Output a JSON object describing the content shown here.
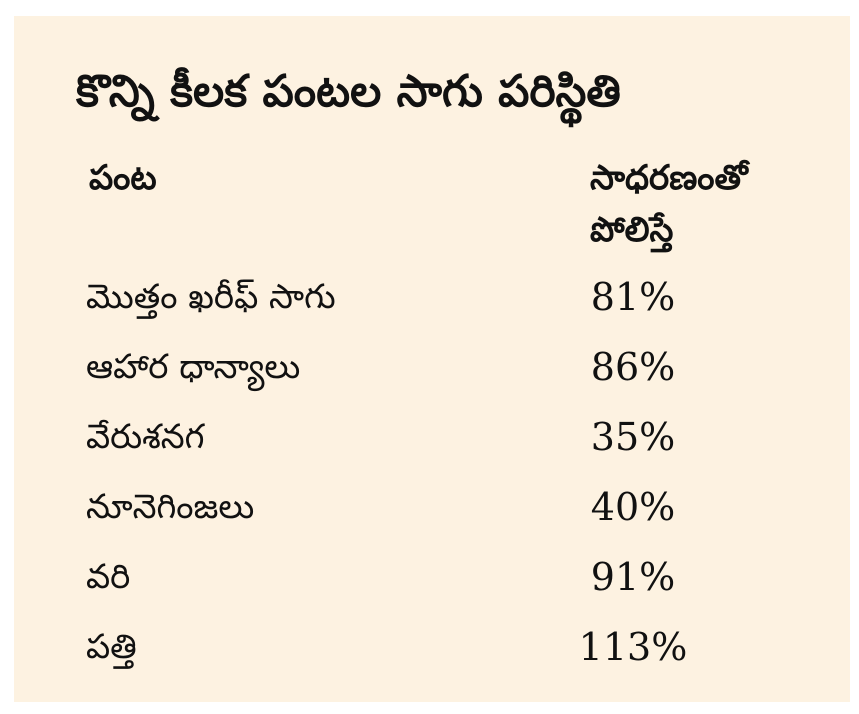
{
  "title": "కొన్ని కీలక పంటల సాగు పరిస్థితి",
  "table": {
    "header": [
      "పంట",
      [
        "సాధరణంతో",
        "పోలిస్తే"
      ]
    ],
    "rows": [
      [
        "మొత్తం ఖరీఫ్ సాగు",
        "81%"
      ],
      [
        "ఆహార ధాన్యాలు",
        "86%"
      ],
      [
        "వేరుశనగ",
        "35%"
      ],
      [
        "నూనెగింజలు",
        "40%"
      ],
      [
        "వరి",
        "91%"
      ],
      [
        "పత్తి",
        "113%"
      ]
    ]
  }
}
